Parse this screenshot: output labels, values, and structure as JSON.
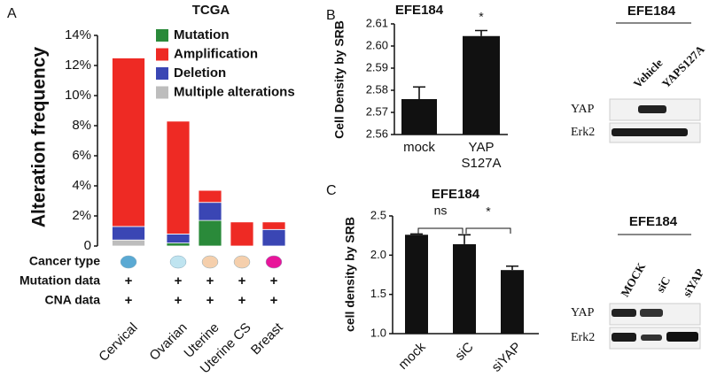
{
  "panel_labels": [
    "A",
    "B",
    "C"
  ],
  "chart_data": [
    {
      "type": "bar",
      "stacked": true,
      "title": "TCGA",
      "ylabel": "Alteration frequency",
      "categories": [
        "Cervical",
        "Ovarian",
        "Uterine",
        "Uterine CS",
        "Breast"
      ],
      "series": [
        {
          "name": "Mutation",
          "color": "#2a8a3a",
          "values": [
            0,
            0.2,
            1.7,
            0,
            0
          ]
        },
        {
          "name": "Amplification",
          "color": "#ee2a24",
          "values": [
            11.2,
            7.5,
            0.8,
            1.6,
            0.5
          ]
        },
        {
          "name": "Deletion",
          "color": "#3a46b4",
          "values": [
            0.9,
            0.6,
            1.2,
            0,
            1.1
          ]
        },
        {
          "name": "Multiple alterations",
          "color": "#bdbdbd",
          "values": [
            0.4,
            0,
            0,
            0,
            0
          ]
        }
      ],
      "ylim": [
        0,
        14
      ],
      "yticks": [
        0,
        {
          "value": 2,
          "label": "2%"
        },
        {
          "value": 4,
          "label": "4%"
        },
        {
          "value": 6,
          "label": "6%"
        },
        {
          "value": 8,
          "label": "8%"
        },
        {
          "value": 10,
          "label": "10%"
        },
        {
          "value": 12,
          "label": "12%"
        },
        {
          "value": 14,
          "label": "14%"
        }
      ],
      "grid": false
    },
    {
      "type": "bar",
      "title": "EFE184",
      "ylabel": "Cell Density by SRB",
      "categories": [
        "mock",
        "YAP S127A"
      ],
      "values": [
        2.576,
        2.6045
      ],
      "errors": [
        0.0055,
        0.0025
      ],
      "color": "#111111",
      "ylim": [
        2.56,
        2.61
      ],
      "yticks": [
        2.56,
        2.57,
        2.58,
        2.59,
        {
          "value": 2.6,
          "label": "2.60"
        },
        2.61
      ],
      "annotations": [
        "*"
      ],
      "grid": false
    },
    {
      "type": "bar",
      "title": "EFE184",
      "ylabel": "cell density by SRB",
      "categories": [
        "mock",
        "siC",
        "siYAP"
      ],
      "values": [
        2.26,
        2.14,
        1.81
      ],
      "errors": [
        0.01,
        0.12,
        0.05
      ],
      "color": "#111111",
      "ylim": [
        1.0,
        2.5
      ],
      "yticks": [
        {
          "value": 1,
          "label": "1.0"
        },
        {
          "value": 1.5,
          "label": "1.5"
        },
        {
          "value": 2,
          "label": "2.0"
        },
        {
          "value": 2.5,
          "label": "2.5"
        }
      ],
      "annotations": [
        "ns",
        "*"
      ],
      "grid": false
    }
  ],
  "table": {
    "rows": [
      {
        "label": "Cancer type",
        "colors": [
          "#5aa9d3",
          "#bfe4f0",
          "#f5cfac",
          "#f5cfac",
          "#e8159a"
        ]
      },
      {
        "label": "Mutation data",
        "cells": [
          "+",
          "+",
          "+",
          "+",
          "+"
        ]
      },
      {
        "label": "CNA data",
        "cells": [
          "+",
          "+",
          "+",
          "+",
          "+"
        ]
      }
    ]
  },
  "blots": [
    {
      "title": "EFE184",
      "lanes": [
        "Vehicle",
        "YAPS127A"
      ],
      "rows": [
        "YAP",
        "Erk2"
      ]
    },
    {
      "title": "EFE184",
      "lanes": [
        "MOCK",
        "siC",
        "siYAP"
      ],
      "rows": [
        "YAP",
        "Erk2"
      ]
    }
  ]
}
